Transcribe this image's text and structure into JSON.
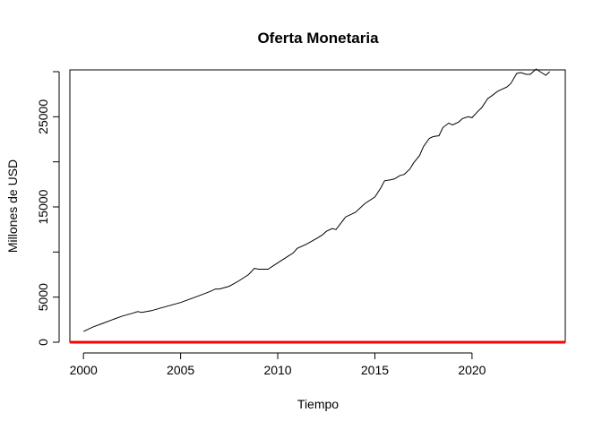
{
  "chart_data": {
    "type": "line",
    "title": "Oferta Monetaria",
    "xlabel": "Tiempo",
    "ylabel": "Millones de USD",
    "xlim": [
      1999.3,
      2024.8
    ],
    "ylim": [
      0,
      30200
    ],
    "x_ticks": [
      2000,
      2005,
      2010,
      2015,
      2020
    ],
    "x_tick_labels": [
      "2000",
      "2005",
      "2010",
      "2015",
      "2020"
    ],
    "y_ticks": [
      0,
      5000,
      15000,
      25000
    ],
    "y_tick_labels": [
      "0",
      "5000",
      "15000",
      "25000"
    ],
    "y_minor_ticks": [
      10000,
      20000,
      30000
    ],
    "grid": false,
    "legend": "none",
    "colors": {
      "series": "#000000",
      "baseline": "#ff0000"
    },
    "series": [
      {
        "x": [
          2000.0,
          2000.5,
          2001.0,
          2001.5,
          2002.0,
          2002.5,
          2002.8,
          2003.0,
          2003.5,
          2004.0,
          2004.5,
          2005.0,
          2005.5,
          2006.0,
          2006.5,
          2006.8,
          2007.0,
          2007.5,
          2008.0,
          2008.5,
          2008.8,
          2009.0,
          2009.5,
          2010.0,
          2010.5,
          2010.8,
          2011.0,
          2011.5,
          2012.0,
          2012.3,
          2012.5,
          2012.8,
          2013.0,
          2013.5,
          2013.8,
          2014.0,
          2014.5,
          2015.0,
          2015.3,
          2015.5,
          2015.8,
          2016.0,
          2016.3,
          2016.5,
          2016.8,
          2017.0,
          2017.3,
          2017.5,
          2017.8,
          2018.0,
          2018.3,
          2018.5,
          2018.8,
          2019.0,
          2019.3,
          2019.5,
          2019.8,
          2020.0,
          2020.3,
          2020.5,
          2020.8,
          2021.0,
          2021.3,
          2021.5,
          2021.8,
          2022.0,
          2022.3,
          2022.5,
          2022.8,
          2023.0,
          2023.3,
          2023.5,
          2023.8,
          2024.0
        ],
        "values": [
          1200,
          1700,
          2100,
          2500,
          2900,
          3200,
          3400,
          3300,
          3500,
          3800,
          4100,
          4400,
          4800,
          5200,
          5600,
          5900,
          5900,
          6200,
          6800,
          7500,
          8200,
          8100,
          8100,
          8800,
          9500,
          9900,
          10400,
          10900,
          11500,
          11900,
          12300,
          12600,
          12500,
          13900,
          14200,
          14400,
          15400,
          16100,
          17100,
          17900,
          18000,
          18100,
          18500,
          18600,
          19200,
          19900,
          20700,
          21700,
          22600,
          22800,
          22900,
          23800,
          24300,
          24100,
          24400,
          24800,
          25000,
          24900,
          25600,
          26000,
          27000,
          27300,
          27800,
          28000,
          28300,
          28700,
          29800,
          29900,
          29700,
          29700,
          30300,
          30000,
          29600,
          30000
        ]
      }
    ],
    "baseline": {
      "value": 0
    }
  }
}
